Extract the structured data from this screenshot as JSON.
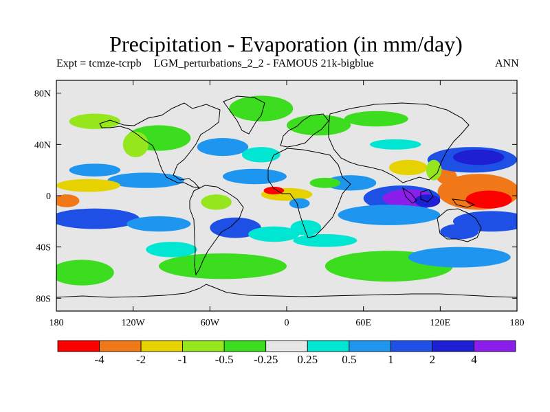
{
  "title": "Precipitation - Evaporation (in mm/day)",
  "subtitle": {
    "expt": "Expt = tcmze-tcrpb",
    "description": "LGM_perturbations_2_2 - FAMOUS 21k-bigblue",
    "season": "ANN"
  },
  "map": {
    "projection": "cylindrical equidistant",
    "lon_range": [
      -180,
      180
    ],
    "lat_range": [
      -90,
      90
    ],
    "land_outline_color": "#000000",
    "background_color": "#e6e6e6",
    "y_ticks": [
      {
        "value": 80,
        "label": "80N"
      },
      {
        "value": 40,
        "label": "40N"
      },
      {
        "value": 0,
        "label": "0"
      },
      {
        "value": -40,
        "label": "40S"
      },
      {
        "value": -80,
        "label": "80S"
      }
    ],
    "x_ticks": [
      {
        "value": -180,
        "label": "180"
      },
      {
        "value": -120,
        "label": "120W"
      },
      {
        "value": -60,
        "label": "60W"
      },
      {
        "value": 0,
        "label": "0"
      },
      {
        "value": 60,
        "label": "60E"
      },
      {
        "value": 120,
        "label": "120E"
      },
      {
        "value": 180,
        "label": "180"
      }
    ]
  },
  "colorbar": {
    "colors": [
      "#ff0000",
      "#f07818",
      "#e6d200",
      "#96e61e",
      "#3cdc1e",
      "#e6e6e6",
      "#00e6d2",
      "#1e96f0",
      "#1e50e6",
      "#1e1ed2",
      "#8c1eeb"
    ],
    "labels": [
      "-4",
      "-2",
      "-1",
      "-0.5",
      "-0.25",
      "0.25",
      "0.5",
      "1",
      "2",
      "4"
    ]
  },
  "chart_data": {
    "type": "heatmap",
    "title": "Precipitation - Evaporation (in mm/day)",
    "units": "mm/day",
    "field": "precipitation minus evaporation (tcmze - tcrpb)",
    "contour_levels": [
      -4,
      -2,
      -1,
      -0.5,
      -0.25,
      0.25,
      0.5,
      1,
      2,
      4
    ],
    "regions": [
      {
        "lon": 150,
        "lat": 3,
        "rx": 32,
        "ry": 14,
        "level": 1
      },
      {
        "lon": 158,
        "lat": -3,
        "rx": 18,
        "ry": 7,
        "level": 0
      },
      {
        "lon": 125,
        "lat": 15,
        "rx": 8,
        "ry": 6,
        "level": 1
      },
      {
        "lon": 145,
        "lat": 28,
        "rx": 35,
        "ry": 10,
        "level": 8
      },
      {
        "lon": 150,
        "lat": 30,
        "rx": 20,
        "ry": 6,
        "level": 9
      },
      {
        "lon": 160,
        "lat": -20,
        "rx": 30,
        "ry": 8,
        "level": 8
      },
      {
        "lon": 135,
        "lat": -28,
        "rx": 15,
        "ry": 6,
        "level": 8
      },
      {
        "lon": 90,
        "lat": -2,
        "rx": 30,
        "ry": 10,
        "level": 8
      },
      {
        "lon": 95,
        "lat": -2,
        "rx": 20,
        "ry": 7,
        "level": 10
      },
      {
        "lon": 110,
        "lat": -4,
        "rx": 10,
        "ry": 5,
        "level": 9
      },
      {
        "lon": 80,
        "lat": -15,
        "rx": 40,
        "ry": 8,
        "level": 7
      },
      {
        "lon": 95,
        "lat": 22,
        "rx": 15,
        "ry": 6,
        "level": 2
      },
      {
        "lon": 115,
        "lat": 20,
        "rx": 6,
        "ry": 8,
        "level": 3
      },
      {
        "lon": 85,
        "lat": 40,
        "rx": 20,
        "ry": 4,
        "level": 6
      },
      {
        "lon": 50,
        "lat": 10,
        "rx": 20,
        "ry": 6,
        "level": 7
      },
      {
        "lon": 30,
        "lat": 10,
        "rx": 12,
        "ry": 4,
        "level": 4
      },
      {
        "lon": 0,
        "lat": 1,
        "rx": 20,
        "ry": 5,
        "level": 2
      },
      {
        "lon": -10,
        "lat": 4,
        "rx": 8,
        "ry": 3,
        "level": 0
      },
      {
        "lon": 10,
        "lat": -6,
        "rx": 8,
        "ry": 4,
        "level": 7
      },
      {
        "lon": 15,
        "lat": -25,
        "rx": 12,
        "ry": 6,
        "level": 6
      },
      {
        "lon": -25,
        "lat": 15,
        "rx": 25,
        "ry": 6,
        "level": 7
      },
      {
        "lon": -50,
        "lat": 38,
        "rx": 20,
        "ry": 7,
        "level": 7
      },
      {
        "lon": -20,
        "lat": 32,
        "rx": 15,
        "ry": 6,
        "level": 6
      },
      {
        "lon": -20,
        "lat": 68,
        "rx": 25,
        "ry": 10,
        "level": 4
      },
      {
        "lon": -100,
        "lat": 45,
        "rx": 25,
        "ry": 10,
        "level": 4
      },
      {
        "lon": -118,
        "lat": 40,
        "rx": 10,
        "ry": 10,
        "level": 3
      },
      {
        "lon": -150,
        "lat": 58,
        "rx": 20,
        "ry": 6,
        "level": 3
      },
      {
        "lon": 25,
        "lat": 55,
        "rx": 25,
        "ry": 8,
        "level": 4
      },
      {
        "lon": 70,
        "lat": 60,
        "rx": 25,
        "ry": 6,
        "level": 4
      },
      {
        "lon": -110,
        "lat": 12,
        "rx": 30,
        "ry": 6,
        "level": 7
      },
      {
        "lon": -150,
        "lat": 20,
        "rx": 20,
        "ry": 5,
        "level": 7
      },
      {
        "lon": -155,
        "lat": 8,
        "rx": 25,
        "ry": 5,
        "level": 2
      },
      {
        "lon": -172,
        "lat": -4,
        "rx": 10,
        "ry": 5,
        "level": 1
      },
      {
        "lon": -150,
        "lat": -18,
        "rx": 35,
        "ry": 8,
        "level": 8
      },
      {
        "lon": -100,
        "lat": -22,
        "rx": 25,
        "ry": 6,
        "level": 7
      },
      {
        "lon": -40,
        "lat": -25,
        "rx": 20,
        "ry": 8,
        "level": 8
      },
      {
        "lon": -55,
        "lat": -5,
        "rx": 12,
        "ry": 6,
        "level": 3
      },
      {
        "lon": -10,
        "lat": -30,
        "rx": 20,
        "ry": 6,
        "level": 6
      },
      {
        "lon": 30,
        "lat": -35,
        "rx": 25,
        "ry": 5,
        "level": 6
      },
      {
        "lon": 80,
        "lat": -55,
        "rx": 50,
        "ry": 12,
        "level": 4
      },
      {
        "lon": -50,
        "lat": -55,
        "rx": 50,
        "ry": 10,
        "level": 4
      },
      {
        "lon": -160,
        "lat": -60,
        "rx": 25,
        "ry": 10,
        "level": 4
      },
      {
        "lon": 135,
        "lat": -48,
        "rx": 40,
        "ry": 8,
        "level": 7
      },
      {
        "lon": -90,
        "lat": -42,
        "rx": 20,
        "ry": 6,
        "level": 6
      }
    ]
  }
}
